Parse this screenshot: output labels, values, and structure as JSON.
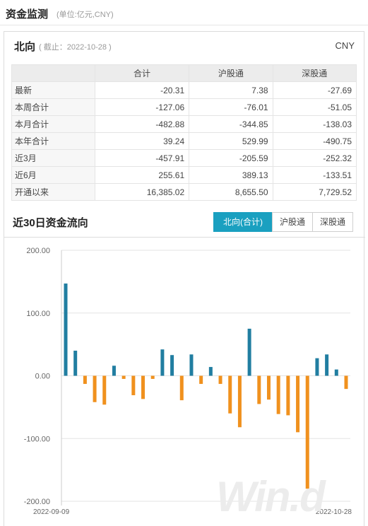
{
  "header": {
    "title": "资金监测",
    "unit": "(单位:亿元,CNY)"
  },
  "northbound": {
    "title": "北向",
    "date_note": "( 截止：2022-10-28 )",
    "currency": "CNY",
    "columns": [
      "",
      "合计",
      "沪股通",
      "深股通"
    ],
    "rows": [
      {
        "label": "最新",
        "values": [
          "-20.31",
          "7.38",
          "-27.69"
        ]
      },
      {
        "label": "本周合计",
        "values": [
          "-127.06",
          "-76.01",
          "-51.05"
        ]
      },
      {
        "label": "本月合计",
        "values": [
          "-482.88",
          "-344.85",
          "-138.03"
        ]
      },
      {
        "label": "本年合计",
        "values": [
          "39.24",
          "529.99",
          "-490.75"
        ]
      },
      {
        "label": "近3月",
        "values": [
          "-457.91",
          "-205.59",
          "-252.32"
        ]
      },
      {
        "label": "近6月",
        "values": [
          "255.61",
          "389.13",
          "-133.51"
        ]
      },
      {
        "label": "开通以来",
        "values": [
          "16,385.02",
          "8,655.50",
          "7,729.52"
        ]
      }
    ]
  },
  "flow_section": {
    "title": "近30日资金流向",
    "tabs": [
      {
        "label": "北向(合计)",
        "active": true
      },
      {
        "label": "沪股通",
        "active": false
      },
      {
        "label": "深股通",
        "active": false
      }
    ]
  },
  "watermark": "Win.d",
  "chart_data": {
    "type": "bar",
    "title": "",
    "xlabel": "",
    "ylabel": "",
    "ylim": [
      -200,
      200
    ],
    "y_ticks": [
      "200.00",
      "100.00",
      "0.00",
      "-100.00",
      "-200.00"
    ],
    "y_tick_values": [
      200,
      100,
      0,
      -100,
      -200
    ],
    "x_tick_labels": [
      "2022-09-09",
      "2022-10-28"
    ],
    "grid": true,
    "colors": {
      "positive": "#217ea1",
      "negative": "#f0911e"
    },
    "values": [
      147,
      40,
      -13,
      -42,
      -46,
      16,
      -5,
      -31,
      -37,
      -5,
      42,
      33,
      -39,
      34,
      -13,
      14,
      -13,
      -60,
      -82,
      75,
      -45,
      -38,
      -61,
      -63,
      -90,
      -180,
      28,
      34,
      10,
      -21
    ]
  }
}
